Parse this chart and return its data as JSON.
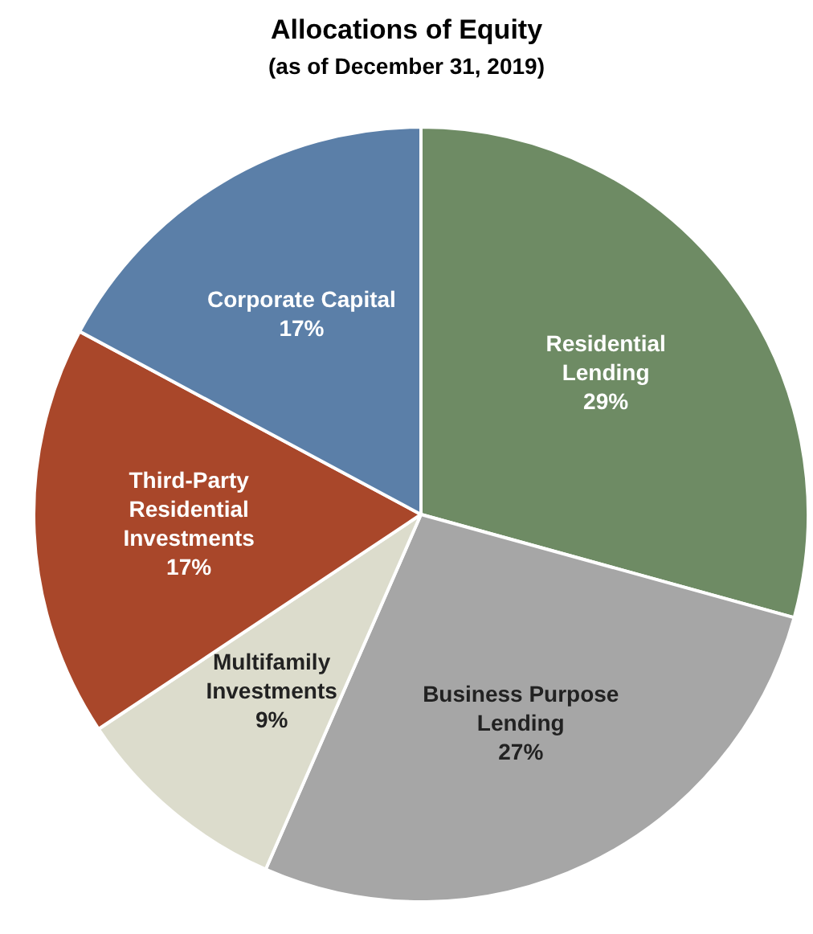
{
  "chart_data": {
    "type": "pie",
    "title": "Allocations of Equity",
    "subtitle": "(as of December 31, 2019)",
    "categories": [
      "Residential Lending",
      "Business Purpose Lending",
      "Multifamily Investments",
      "Third-Party Residential Investments",
      "Corporate Capital"
    ],
    "values": [
      29,
      27,
      9,
      17,
      17
    ],
    "value_labels": [
      "29%",
      "27%",
      "9%",
      "17%",
      "17%"
    ],
    "colors": [
      "#6e8b64",
      "#a6a6a6",
      "#dcdccc",
      "#a9472a",
      "#5b7fa8"
    ],
    "legend": false
  }
}
